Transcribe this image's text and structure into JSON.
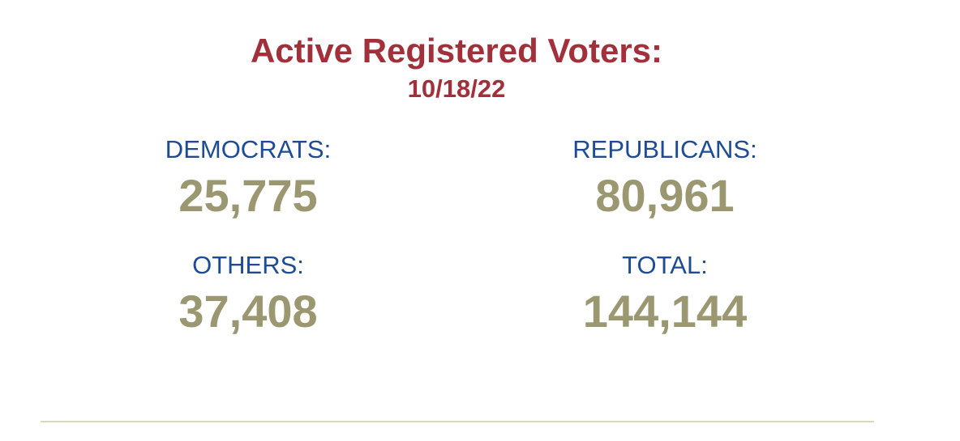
{
  "header": {
    "title": "Active Registered Voters:",
    "date": "10/18/22"
  },
  "stats": [
    {
      "label": "DEMOCRATS:",
      "value": "25,775"
    },
    {
      "label": "REPUBLICANS:",
      "value": "80,961"
    },
    {
      "label": "OTHERS:",
      "value": "37,408"
    },
    {
      "label": "TOTAL:",
      "value": "144,144"
    }
  ]
}
